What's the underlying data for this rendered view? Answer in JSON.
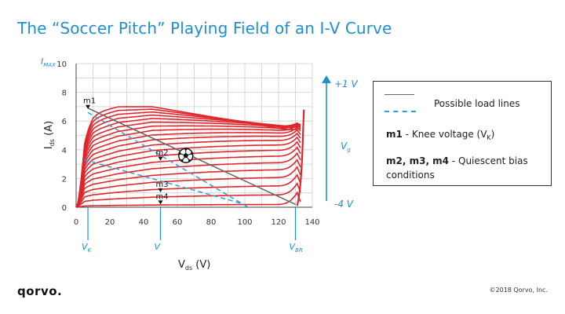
{
  "title": "The “Soccer Pitch” Playing Field of an I-V Curve",
  "logo_text": "qorvo.",
  "copyright": "©2018 Qorvo, Inc.",
  "colors": {
    "accent": "#1f8fd1",
    "curve": "#e0262b",
    "dash": "#2b9fd9",
    "load_line": "#666666"
  },
  "legend": {
    "possible": "Possible load lines",
    "m1_bold": "m1",
    "m1_text": " - Knee voltage (V",
    "m1_sub": "K",
    "m1_close": ")",
    "m234_bold": "m2, m3, m4",
    "m234_text": " - Quiescent bias conditions"
  },
  "annotations": {
    "imax_main": "I",
    "imax_sub": "MAX",
    "vg_top": "+1 V",
    "vg_bottom": "-4 V",
    "vg_main": "V",
    "vg_sub": "g",
    "vk_main": "V",
    "vk_sub": "K",
    "v_label": "V",
    "vbr_main": "V",
    "vbr_sub": "BR",
    "ball_icon": "soccer-ball-icon"
  },
  "chart_data": {
    "type": "line",
    "xlabel_main": "V",
    "xlabel_sub": "ds",
    "xlabel_unit": " (V)",
    "ylabel_main": "I",
    "ylabel_sub": "ds",
    "ylabel_unit": " (A)",
    "xlim": [
      0,
      140
    ],
    "ylim": [
      0,
      10
    ],
    "xticks": [
      0,
      20,
      40,
      60,
      80,
      100,
      120,
      140
    ],
    "yticks": [
      0,
      2,
      4,
      6,
      8,
      10
    ],
    "grid": true,
    "markers": [
      {
        "name": "m1",
        "x": 7,
        "y": 6.9
      },
      {
        "name": "m2",
        "x": 50,
        "y": 3.3
      },
      {
        "name": "m3",
        "x": 50,
        "y": 1.1
      },
      {
        "name": "m4",
        "x": 50,
        "y": 0.25
      }
    ],
    "load_lines": [
      {
        "style": "solid",
        "points": [
          [
            7,
            6.9
          ],
          [
            130,
            0.2
          ]
        ]
      },
      {
        "style": "dashed",
        "points": [
          [
            7,
            6.6
          ],
          [
            102,
            0.0
          ]
        ]
      },
      {
        "style": "dashed",
        "points": [
          [
            5,
            3.3
          ],
          [
            100,
            0.2
          ]
        ]
      }
    ],
    "soccer_ball": {
      "x": 65,
      "y": 3.6
    },
    "vertical_markers": [
      {
        "label": "VK",
        "x": 7
      },
      {
        "label": "V",
        "x": 50
      },
      {
        "label": "VBR",
        "x": 130
      }
    ],
    "iv_curves": {
      "count": 20,
      "knee_v": 8,
      "breakdown_v": 130,
      "top_curve": [
        [
          0,
          0
        ],
        [
          5,
          5.9
        ],
        [
          10,
          6.6
        ],
        [
          25,
          7.0
        ],
        [
          45,
          7.0
        ],
        [
          70,
          6.5
        ],
        [
          95,
          6.0
        ],
        [
          120,
          5.5
        ],
        [
          133,
          5.2
        ]
      ],
      "bottom_current": 0.1
    }
  }
}
